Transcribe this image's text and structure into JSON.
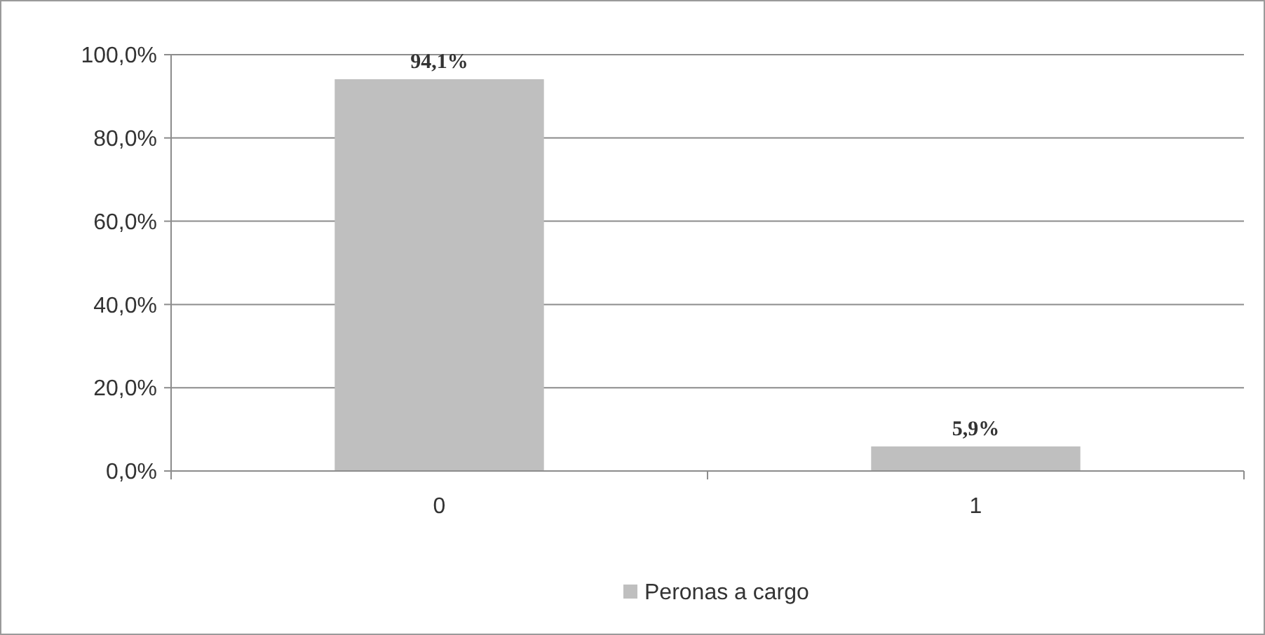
{
  "chart_data": {
    "type": "bar",
    "categories": [
      "0",
      "1"
    ],
    "series": [
      {
        "name": "Peronas a cargo",
        "color": "#bfbfbf",
        "values": [
          94.1,
          5.9
        ],
        "value_labels": [
          "94,1%",
          "5,9%"
        ]
      }
    ],
    "ylim": [
      0,
      100
    ],
    "yticks": [
      {
        "value": 0,
        "label": "0,0%"
      },
      {
        "value": 20,
        "label": "20,0%"
      },
      {
        "value": 40,
        "label": "40,0%"
      },
      {
        "value": 60,
        "label": "60,0%"
      },
      {
        "value": 80,
        "label": "80,0%"
      },
      {
        "value": 100,
        "label": "100,0%"
      }
    ],
    "grid": "y",
    "legend": "bottom"
  }
}
